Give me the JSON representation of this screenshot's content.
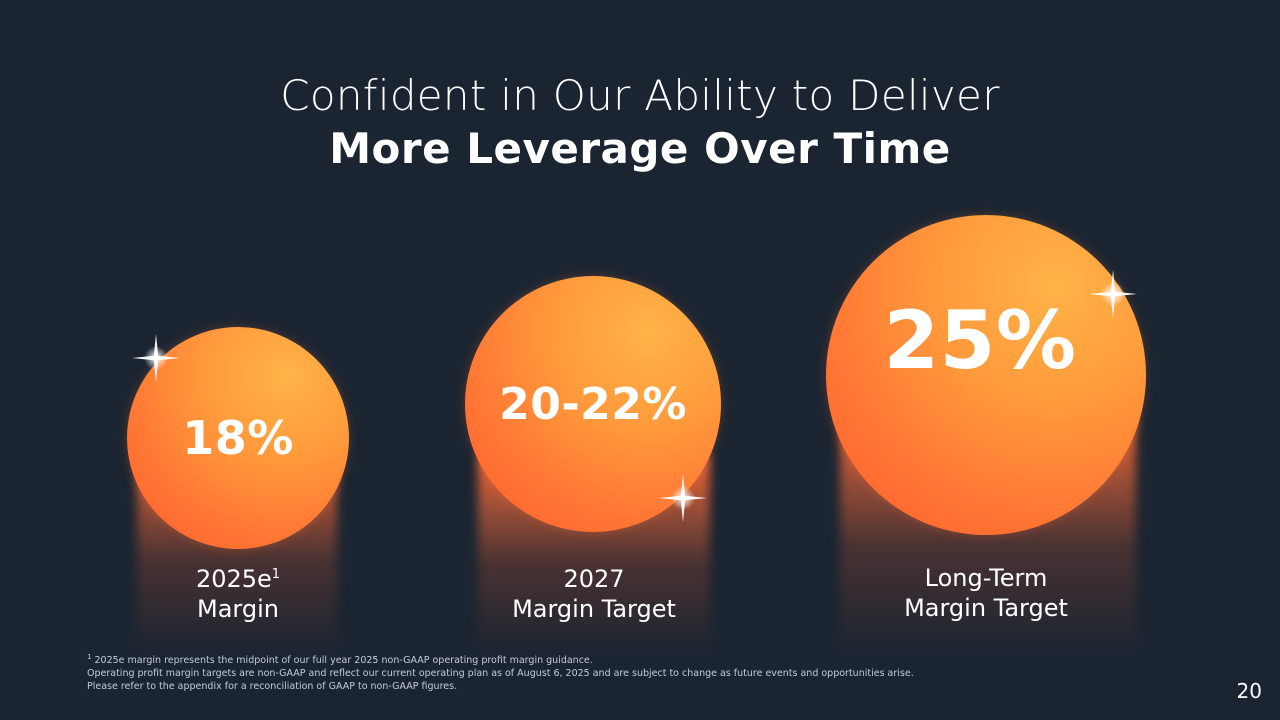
{
  "title": {
    "line1": "Confident in Our Ability to Deliver",
    "line2": "More Leverage Over Time"
  },
  "targets": [
    {
      "value": "18%",
      "label_line1": "2025e",
      "label_sup": "1",
      "label_line2": "Margin",
      "color": "#ff7a35"
    },
    {
      "value": "20-22%",
      "label_line1": "2027",
      "label_line2": "Margin Target",
      "color": "#ff7a35"
    },
    {
      "value": "25%",
      "label_line1": "Long-Term",
      "label_line2": "Margin Target",
      "color": "#ff7a35"
    }
  ],
  "footnotes": {
    "note1_marker": "1",
    "note1": "2025e margin represents the midpoint of our full year 2025 non-GAAP operating profit margin guidance.",
    "note2": "Operating profit margin targets are non-GAAP and reflect our current operating plan as of August 6, 2025 and are subject to change as future events and opportunities arise.",
    "note3": "Please refer to the appendix for a reconciliation of GAAP to non-GAAP figures."
  },
  "page_number": "20",
  "colors": {
    "background": "#1b2531",
    "accent": "#ff7a35",
    "accent_light": "#ffb347"
  },
  "icons": [
    "sparkle-icon"
  ]
}
